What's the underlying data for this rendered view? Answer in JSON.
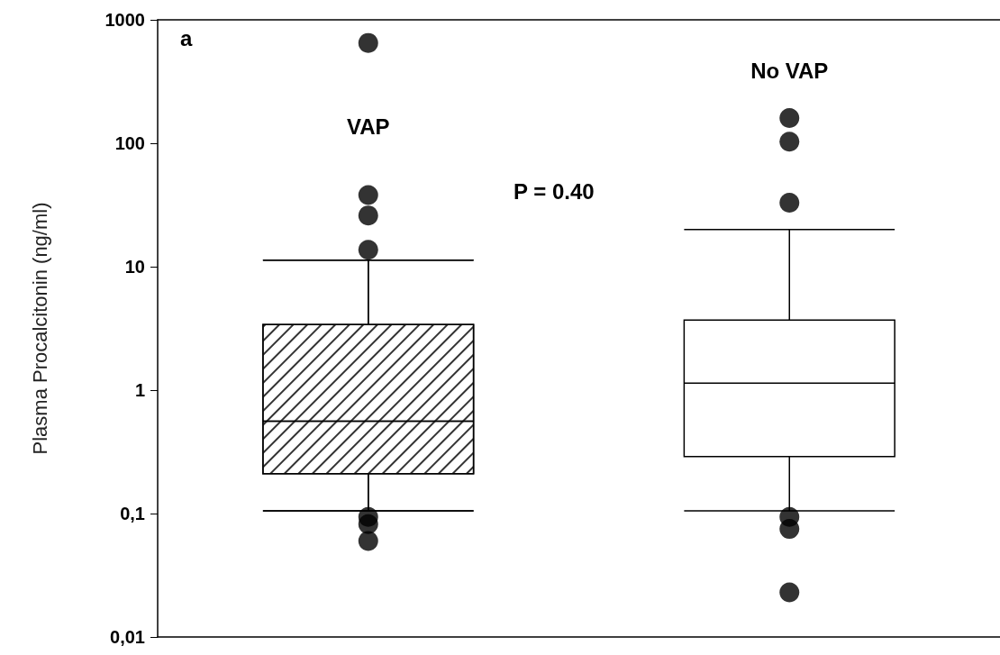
{
  "chart_data": {
    "type": "box",
    "ylabel": "Plasma Procalcitonin (ng/ml)",
    "categories": [
      "VAP",
      "No VAP"
    ],
    "boxes": [
      {
        "low": 0.105,
        "q1": 0.21,
        "median": 0.56,
        "q3": 3.4,
        "high": 11.3,
        "outliers": [
          650,
          38,
          26,
          13.7,
          0.094,
          0.082,
          0.06
        ]
      },
      {
        "low": 0.105,
        "q1": 0.29,
        "median": 1.14,
        "q3": 3.7,
        "high": 20,
        "outliers": [
          160,
          103,
          33,
          0.094,
          0.075,
          0.023
        ]
      }
    ],
    "log": true,
    "ylim": [
      0.01,
      1000
    ],
    "yticks": [
      {
        "value": 0.01,
        "label": "0,01"
      },
      {
        "value": 0.1,
        "label": "0,1"
      },
      1,
      10,
      100,
      1000
    ],
    "tick_labels": "y",
    "grid": false,
    "annotations": [
      "a",
      "P = 0.40"
    ]
  }
}
